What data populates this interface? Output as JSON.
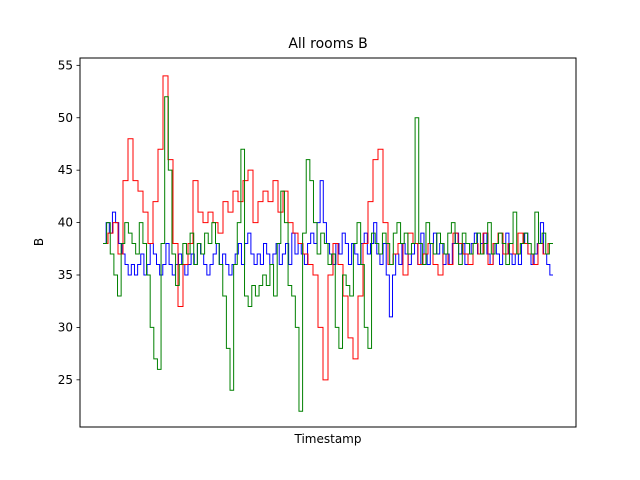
{
  "chart_data": {
    "type": "line",
    "title": "All rooms B",
    "xlabel": "Timestamp",
    "ylabel": "B",
    "ylim": [
      20.5,
      55.7
    ],
    "yticks": [
      25,
      30,
      35,
      40,
      45,
      50,
      55
    ],
    "xticks_shown": false,
    "grid": false,
    "legend": "none",
    "series": [
      {
        "color": "#0000ff",
        "values": [
          38,
          40,
          39,
          41,
          40,
          38,
          37,
          36,
          35,
          36,
          35,
          36,
          37,
          35,
          36,
          38,
          37,
          36,
          35,
          36,
          38,
          36,
          35,
          36,
          37,
          36,
          35,
          36,
          37,
          36,
          38,
          37,
          36,
          35,
          36,
          37,
          38,
          36,
          37,
          36,
          35,
          36,
          37,
          38,
          36,
          38,
          39,
          37,
          36,
          37,
          36,
          38,
          37,
          36,
          37,
          38,
          36,
          37,
          38,
          36,
          39,
          37,
          38,
          37,
          36,
          38,
          39,
          38,
          40,
          44,
          40,
          38,
          37,
          36,
          38,
          37,
          39,
          38,
          36,
          38,
          37,
          36,
          38,
          39,
          37,
          38,
          40,
          37,
          36,
          38,
          35,
          31,
          35,
          37,
          36,
          38,
          37,
          36,
          37,
          38,
          36,
          39,
          37,
          36,
          38,
          39,
          37,
          38,
          36,
          37,
          36,
          38,
          39,
          37,
          38,
          36,
          37,
          38,
          39,
          37,
          38,
          39,
          37,
          36,
          38,
          37,
          36,
          38,
          39,
          37,
          36,
          37,
          36,
          38,
          39,
          37,
          36,
          37,
          38,
          40,
          37,
          36,
          35
        ]
      },
      {
        "color": "#ff0000",
        "values": [
          38,
          39,
          40,
          37,
          44,
          48,
          44,
          43,
          41,
          38,
          42,
          47,
          54,
          46,
          38,
          32,
          36,
          38,
          44,
          41,
          40,
          41,
          40,
          39,
          42,
          41,
          43,
          42,
          44,
          45,
          40,
          42,
          43,
          42,
          44,
          41,
          43,
          40,
          39,
          38,
          37,
          36,
          35,
          30,
          25,
          35,
          38,
          36,
          33,
          29,
          27,
          33,
          38,
          42,
          46,
          47,
          40,
          36,
          37,
          38,
          35,
          39,
          38,
          36,
          37,
          38,
          36,
          35,
          37,
          36,
          39,
          38,
          37,
          36,
          38,
          37,
          39,
          36,
          38,
          39,
          37,
          38,
          37,
          39,
          38,
          37,
          36,
          38,
          37,
          38
        ]
      },
      {
        "color": "#008000",
        "values": [
          38,
          40,
          37,
          35,
          33,
          38,
          40,
          39,
          38,
          37,
          40,
          38,
          35,
          30,
          27,
          26,
          38,
          52,
          45,
          37,
          34,
          36,
          38,
          37,
          39,
          36,
          38,
          37,
          39,
          38,
          40,
          38,
          36,
          33,
          28,
          24,
          36,
          40,
          47,
          33,
          32,
          34,
          33,
          34,
          35,
          34,
          36,
          33,
          38,
          43,
          40,
          34,
          33,
          30,
          22,
          39,
          46,
          44,
          40,
          37,
          39,
          38,
          36,
          37,
          30,
          28,
          35,
          34,
          33,
          38,
          40,
          36,
          30,
          28,
          39,
          38,
          37,
          39,
          38,
          36,
          39,
          40,
          38,
          39,
          37,
          38,
          50,
          38,
          36,
          40,
          38,
          37,
          39,
          38,
          37,
          39,
          40,
          38,
          36,
          39,
          38,
          37,
          38,
          39,
          37,
          38,
          40,
          37,
          38,
          39,
          38,
          36,
          38,
          41,
          37,
          38,
          39,
          38,
          37,
          41,
          38,
          39,
          37,
          38
        ]
      }
    ]
  }
}
